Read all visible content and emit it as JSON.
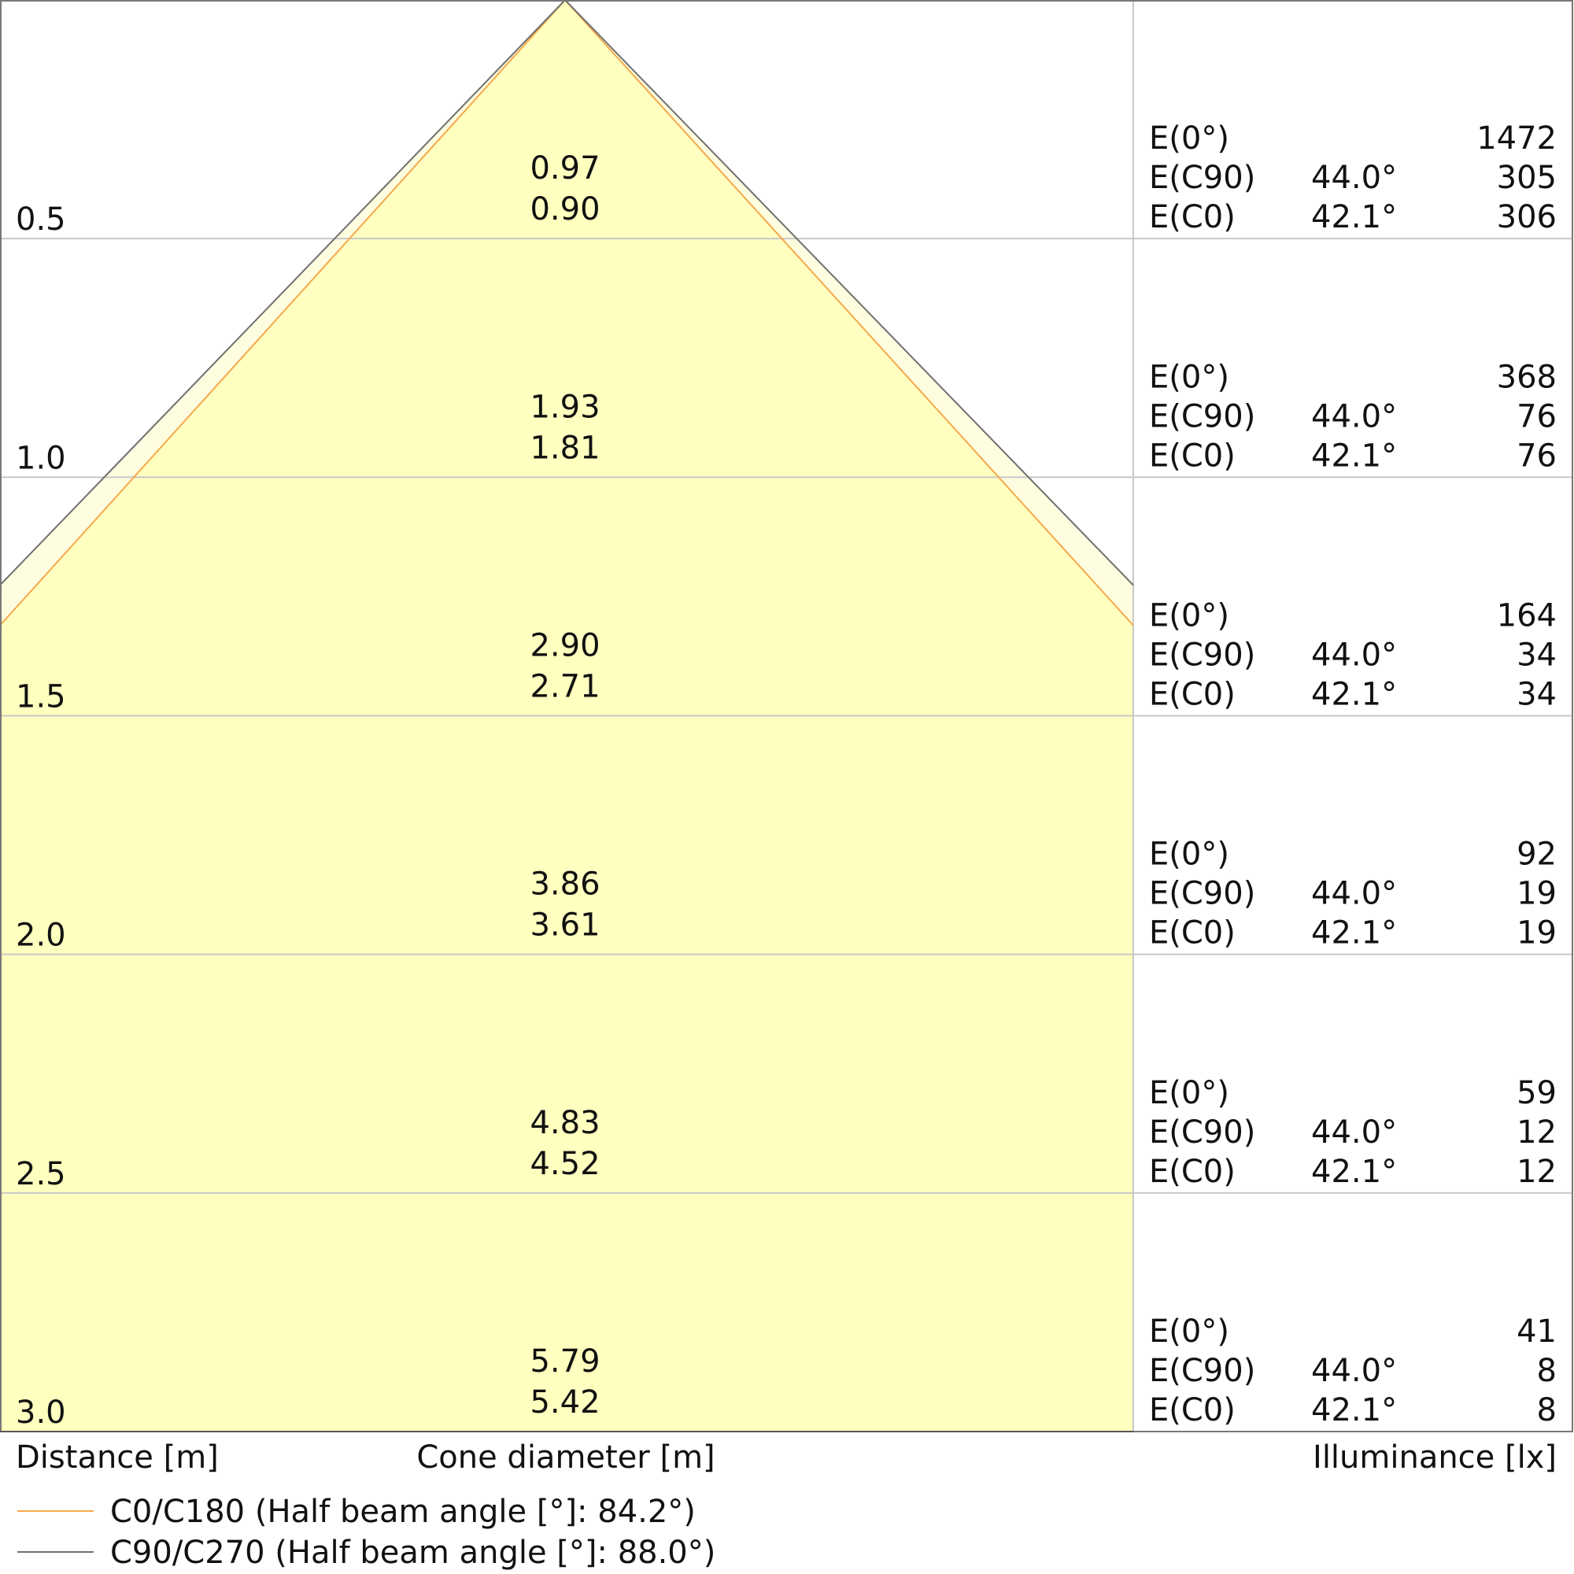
{
  "chart_data": {
    "type": "cone-diagram",
    "xlabel": "Distance [m]",
    "center_label": "Cone diameter [m]",
    "right_label": "Illuminance [lx]",
    "distances": [
      "0.5",
      "1.0",
      "1.5",
      "2.0",
      "2.5",
      "3.0"
    ],
    "diameter_c90": [
      "0.97",
      "1.93",
      "2.90",
      "3.86",
      "4.83",
      "5.79"
    ],
    "diameter_c0": [
      "0.90",
      "1.81",
      "2.71",
      "3.61",
      "4.52",
      "5.42"
    ],
    "table_labels": [
      "E(0°)",
      "E(C90)",
      "E(C0)"
    ],
    "angle_c90": "44.0°",
    "angle_c0": "42.1°",
    "e0": [
      "1472",
      "368",
      "164",
      "92",
      "59",
      "41"
    ],
    "e_c90": [
      "305",
      "76",
      "34",
      "19",
      "12",
      "8"
    ],
    "e_c0": [
      "306",
      "76",
      "34",
      "19",
      "12",
      "8"
    ],
    "series": [
      {
        "name": "C0/C180 (Half beam angle [°]: 84.2°)",
        "half_beam_angle": 84.2,
        "color": "#f5a94a"
      },
      {
        "name": "C90/C270 (Half beam angle [°]: 88.0°)",
        "half_beam_angle": 88.0,
        "color": "#707070"
      }
    ],
    "fill_color": "#ffffc0",
    "grid": true
  }
}
